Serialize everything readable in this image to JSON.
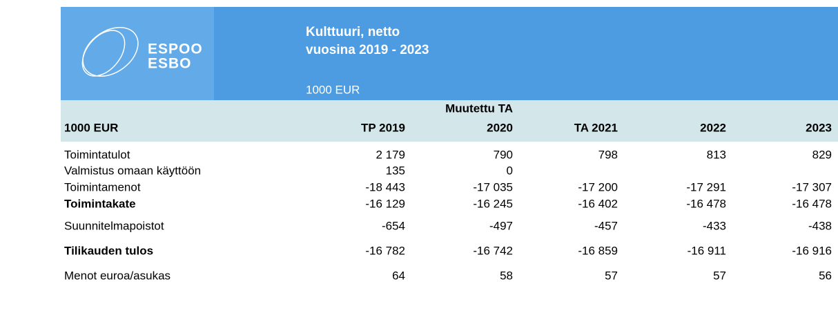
{
  "header": {
    "logo": [
      "ESPOO",
      "ESBO"
    ],
    "title": [
      "Kulttuuri, netto",
      "vuosina 2019 - 2023"
    ],
    "unit": "1000 EUR"
  },
  "table": {
    "columns": [
      [
        "1000 EUR"
      ],
      [
        "TP 2019"
      ],
      [
        "Muutettu TA",
        "2020"
      ],
      [
        "TA 2021"
      ],
      [
        "2022"
      ],
      [
        "2023"
      ]
    ],
    "rows": [
      {
        "label": "Toimintatulot",
        "bold": false,
        "values": [
          "2 179",
          "790",
          "798",
          "813",
          "829"
        ]
      },
      {
        "label": "Valmistus omaan käyttöön",
        "bold": false,
        "values": [
          "135",
          "0",
          null,
          null,
          null
        ]
      },
      {
        "label": "Toimintamenot",
        "bold": false,
        "values": [
          "-18 443",
          "-17 035",
          "-17 200",
          "-17 291",
          "-17 307"
        ]
      },
      {
        "label": "Toimintakate",
        "bold": true,
        "values": [
          "-16 129",
          "-16 245",
          "-16 402",
          "-16 478",
          "-16 478"
        ]
      },
      {
        "label": "Suunnitelmapoistot",
        "bold": false,
        "values": [
          "-654",
          "-497",
          "-457",
          "-433",
          "-438"
        ]
      },
      {
        "label": "Tilikauden tulos",
        "bold": true,
        "values": [
          "-16 782",
          "-16 742",
          "-16 859",
          "-16 911",
          "-16 916"
        ]
      },
      {
        "label": "Menot euroa/asukas",
        "bold": false,
        "values": [
          "64",
          "58",
          "57",
          "57",
          "56"
        ]
      }
    ]
  }
}
